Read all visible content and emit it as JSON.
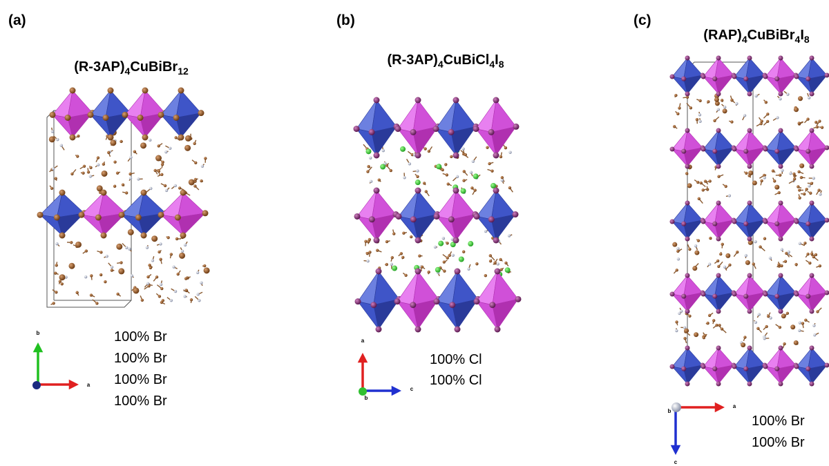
{
  "panels": [
    {
      "label": "(a)",
      "title": [
        "(R-3AP)",
        "4",
        "CuBiBr",
        "12"
      ],
      "axis_labels": [
        "b",
        "a"
      ],
      "compositions": [
        "100% Br",
        "100% Br",
        "100% Br",
        "100% Br"
      ]
    },
    {
      "label": "(b)",
      "title": [
        "(R-3AP)",
        "4",
        "CuBiCl",
        "4",
        "I",
        "8"
      ],
      "axis_labels": [
        "a",
        "c",
        "b"
      ],
      "compositions": [
        "100% Cl",
        "100% Cl"
      ]
    },
    {
      "label": "(c)",
      "title": [
        "(RAP)",
        "4",
        "CuBiBr",
        "4",
        "I",
        "8"
      ],
      "axis_labels": [
        "b",
        "a",
        "c"
      ],
      "compositions": [
        "100% Br",
        "100% Br"
      ]
    }
  ]
}
